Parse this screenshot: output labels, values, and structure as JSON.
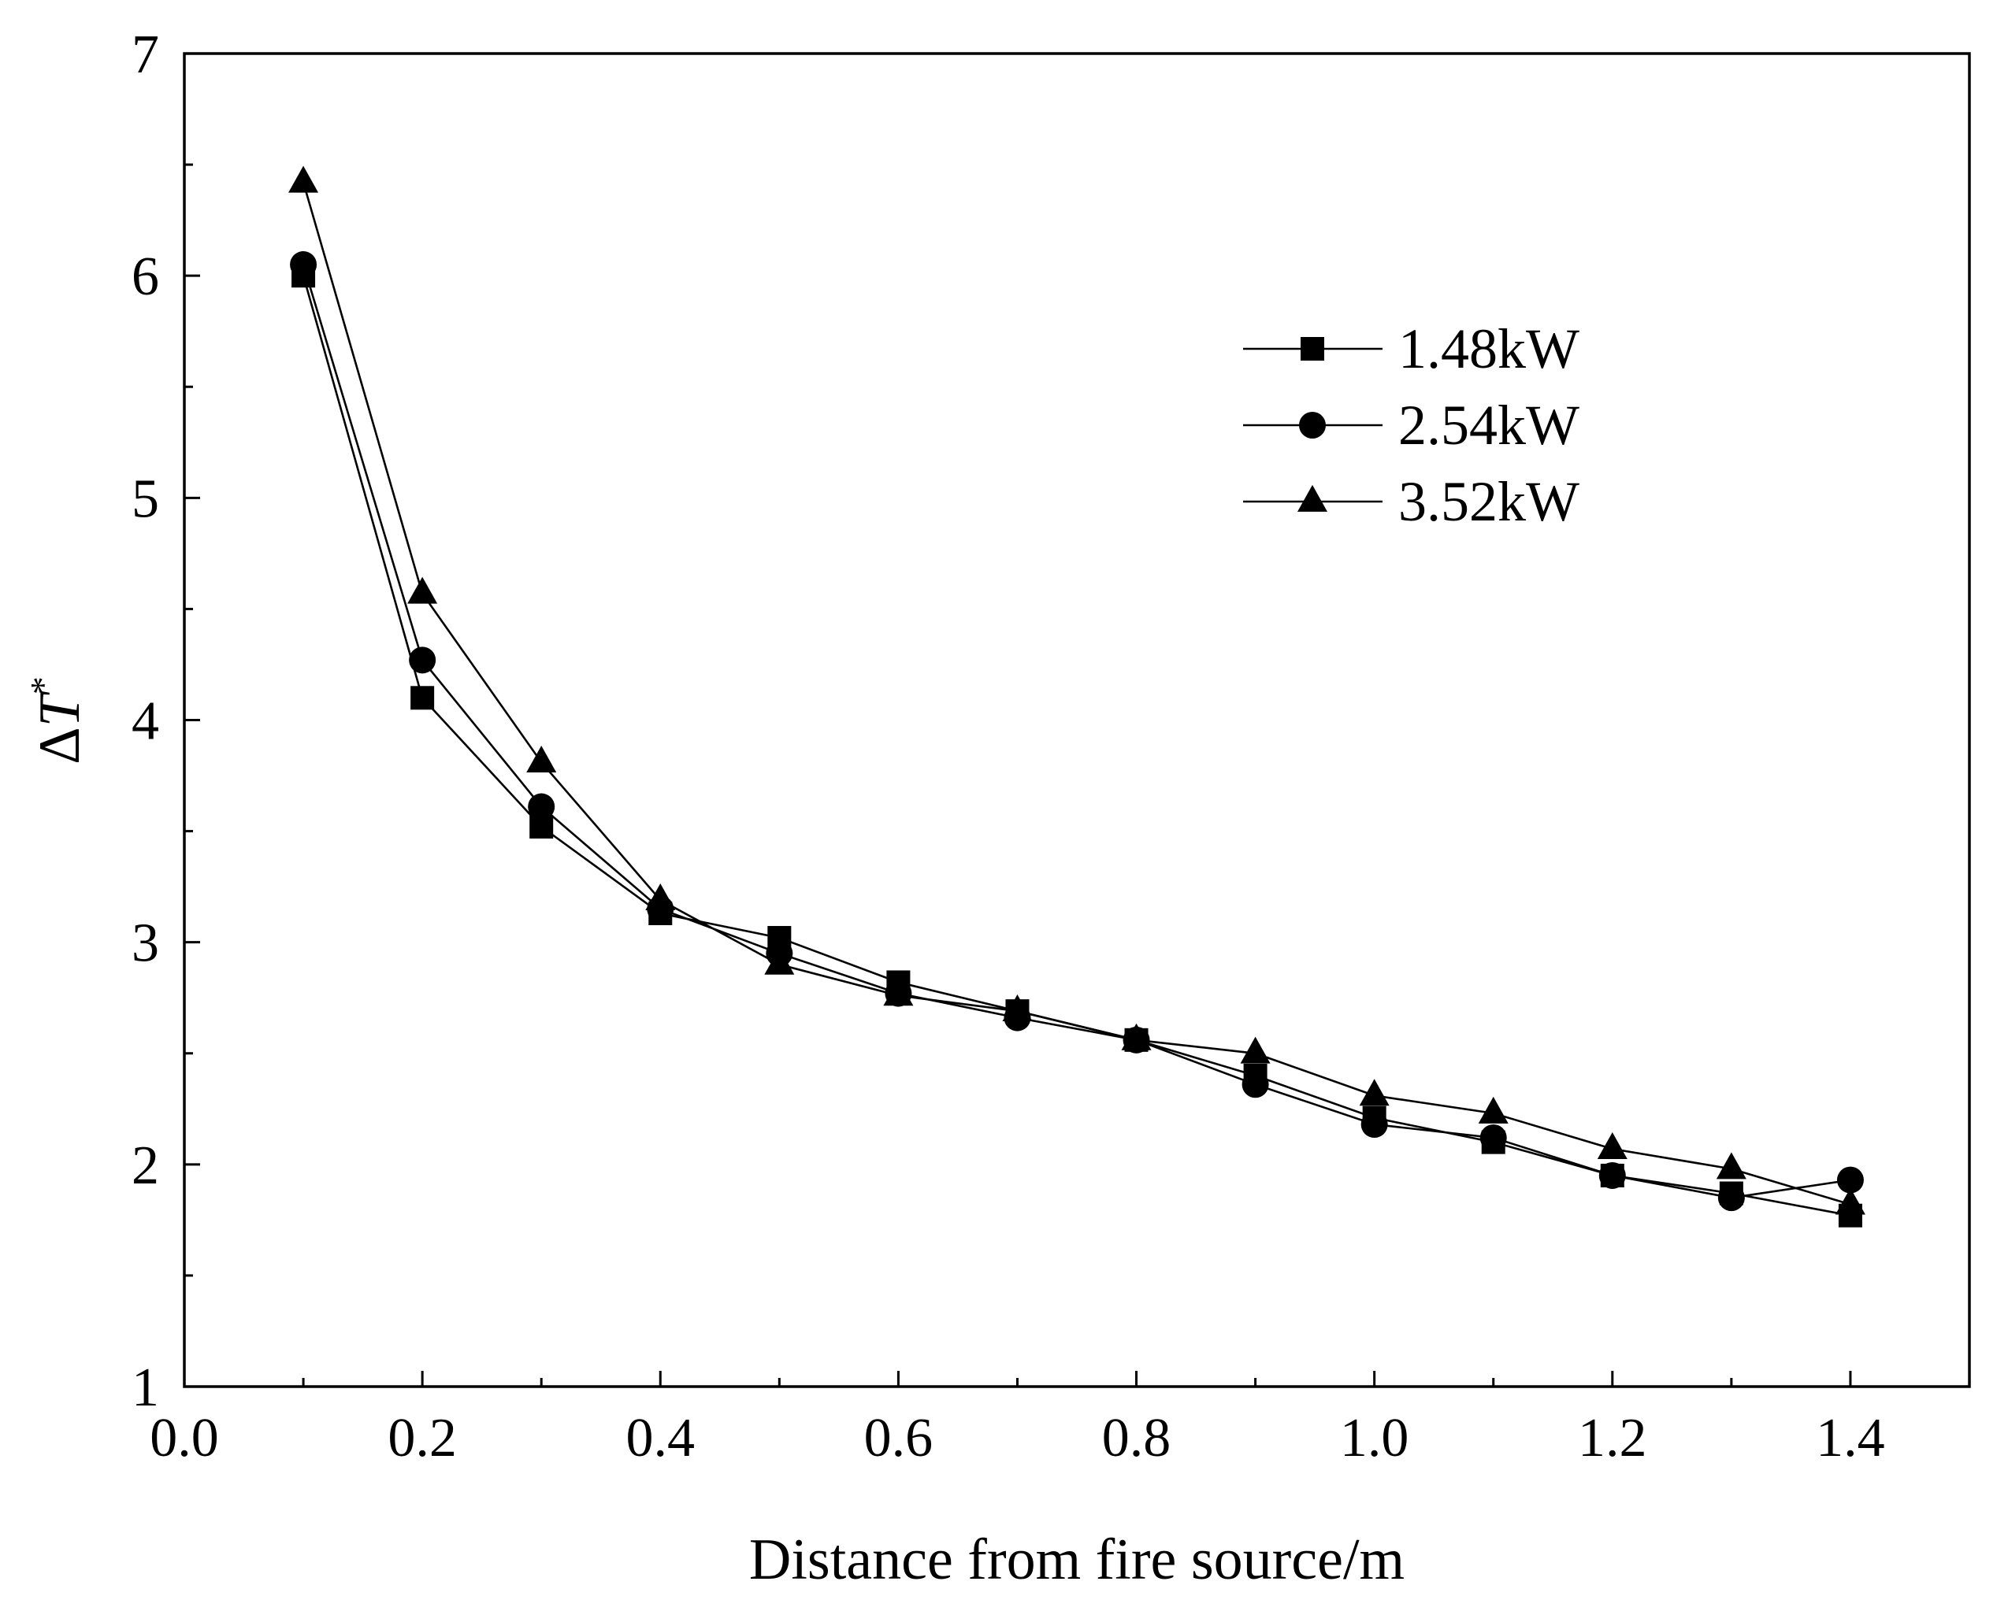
{
  "chart_data": {
    "type": "line",
    "title": "",
    "xlabel": "Distance from fire source/m",
    "ylabel": {
      "prefix": "Δ",
      "variable": "T",
      "superscript": "*"
    },
    "xlim": [
      0.0,
      1.5
    ],
    "ylim": [
      1,
      7
    ],
    "x_ticks": [
      0.0,
      0.2,
      0.4,
      0.6,
      0.8,
      1.0,
      1.2,
      1.4
    ],
    "x_tick_labels": [
      "0.0",
      "0.2",
      "0.4",
      "0.6",
      "0.8",
      "1.0",
      "1.2",
      "1.4"
    ],
    "y_ticks": [
      1,
      2,
      3,
      4,
      5,
      6,
      7
    ],
    "y_tick_labels": [
      "1",
      "2",
      "3",
      "4",
      "5",
      "6",
      "7"
    ],
    "grid": false,
    "legend_position": "upper-right",
    "x": [
      0.1,
      0.2,
      0.3,
      0.4,
      0.5,
      0.6,
      0.7,
      0.8,
      0.9,
      1.0,
      1.1,
      1.2,
      1.3,
      1.4
    ],
    "series": [
      {
        "name": "1.48kW",
        "marker": "square",
        "values": [
          6.0,
          4.1,
          3.52,
          3.13,
          3.02,
          2.82,
          2.69,
          2.56,
          2.4,
          2.21,
          2.1,
          1.95,
          1.87,
          1.77
        ]
      },
      {
        "name": "2.54kW",
        "marker": "circle",
        "values": [
          6.05,
          4.27,
          3.61,
          3.15,
          2.95,
          2.77,
          2.66,
          2.56,
          2.36,
          2.18,
          2.12,
          1.95,
          1.85,
          1.93
        ]
      },
      {
        "name": "3.52kW",
        "marker": "triangle",
        "values": [
          6.42,
          4.57,
          3.81,
          3.19,
          2.9,
          2.76,
          2.69,
          2.56,
          2.5,
          2.31,
          2.23,
          2.07,
          1.98,
          1.82
        ]
      }
    ],
    "colors": {
      "line": "#000000",
      "marker": "#000000",
      "background": "#ffffff"
    }
  }
}
